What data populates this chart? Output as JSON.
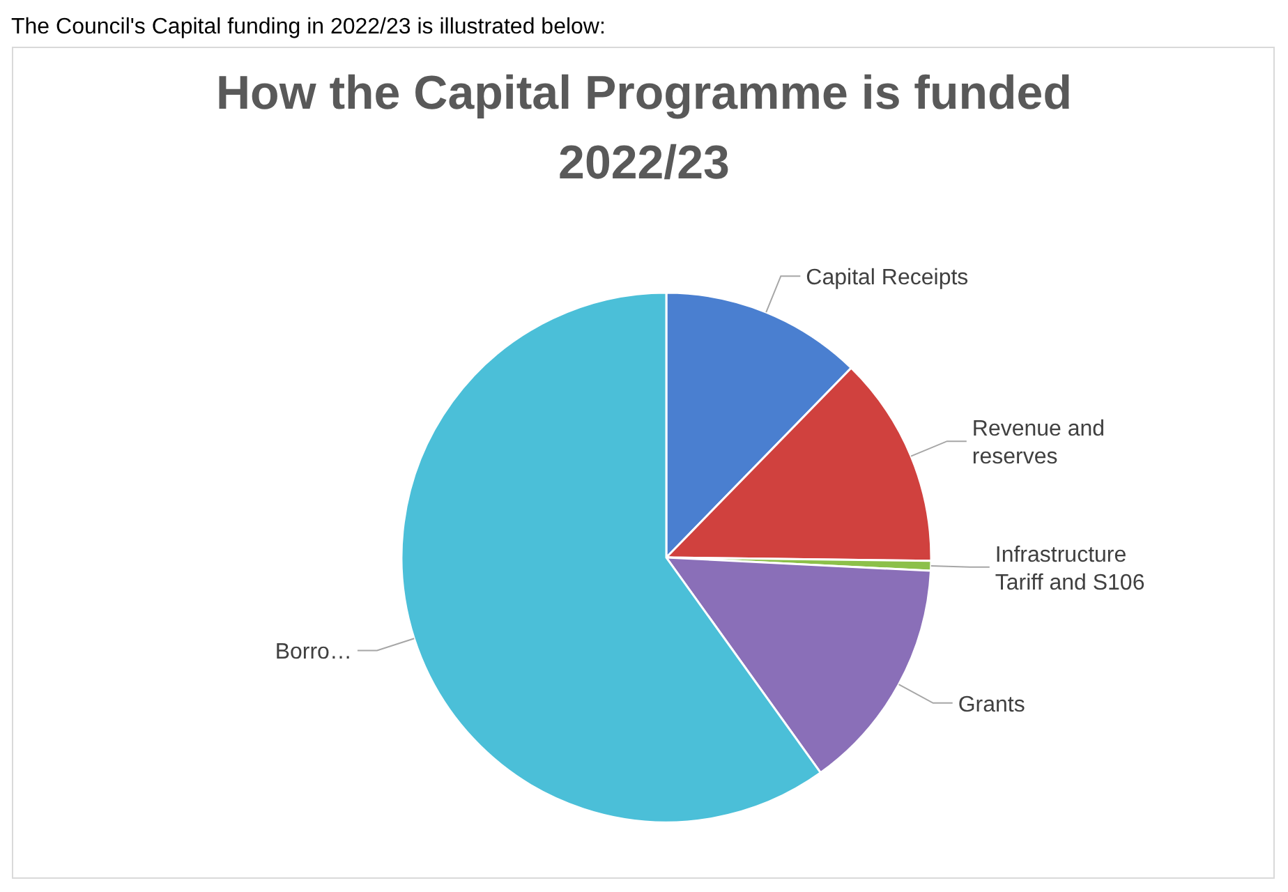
{
  "chart_data": {
    "type": "pie",
    "title": "How the Capital Programme is funded 2022/23",
    "annotations": [
      "The Council's Capital funding in 2022/23 is illustrated below:"
    ],
    "categories": [
      "Capital Receipts",
      "Revenue and reserves",
      "Infrastructure Tariff and S106",
      "Grants",
      "Borro…"
    ],
    "values": [
      12.3,
      12.9,
      0.6,
      14.3,
      59.9
    ],
    "colors": [
      "#4a7fd0",
      "#d0413e",
      "#8cc04a",
      "#8a6fb8",
      "#4bbfd8"
    ],
    "legend": false
  }
}
